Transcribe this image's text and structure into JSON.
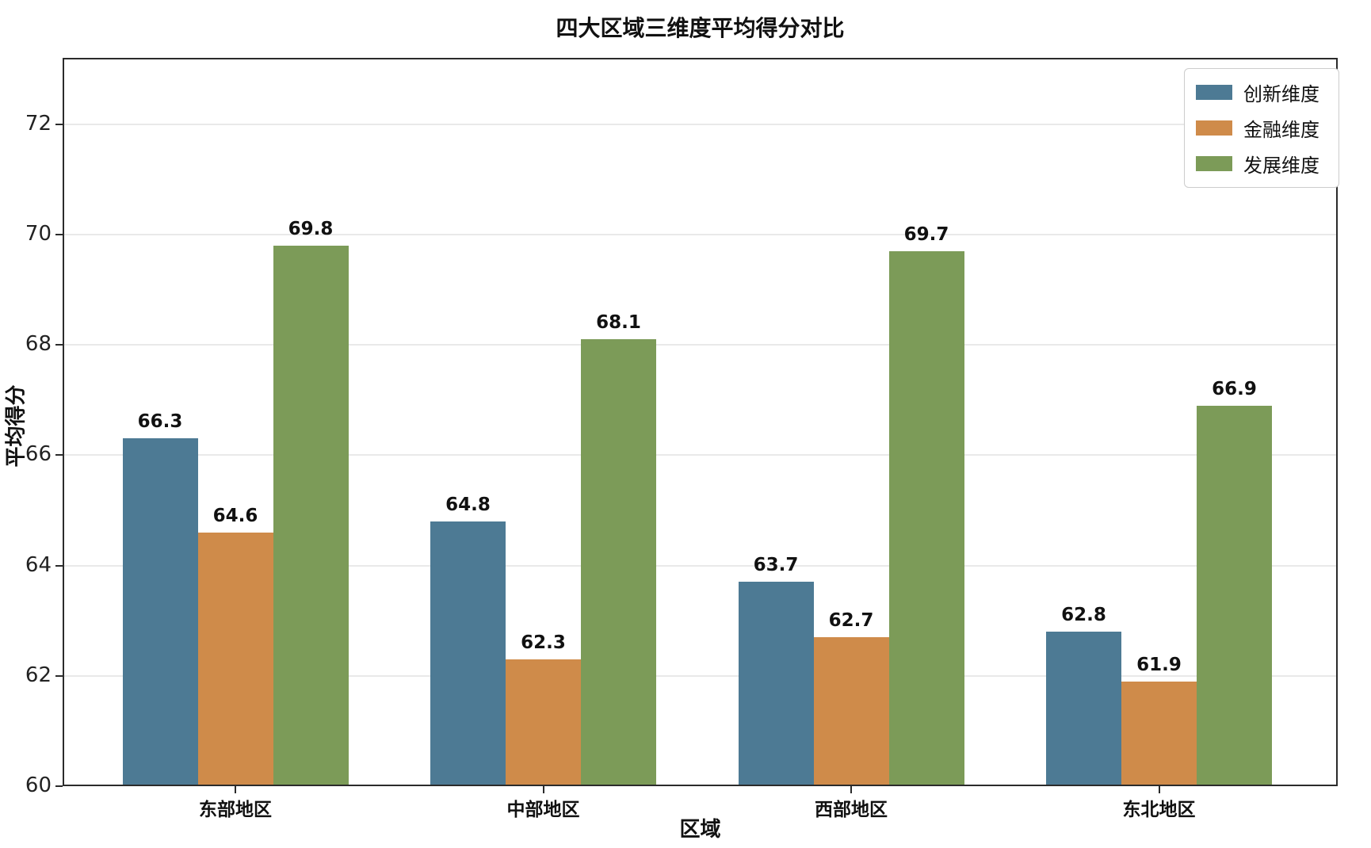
{
  "chart_data": {
    "type": "bar",
    "title": "四大区域三维度平均得分对比",
    "xlabel": "区域",
    "ylabel": "平均得分",
    "categories": [
      "东部地区",
      "中部地区",
      "西部地区",
      "东北地区"
    ],
    "series": [
      {
        "name": "创新维度",
        "color": "#4d7a94",
        "values": [
          66.3,
          64.8,
          63.7,
          62.8
        ]
      },
      {
        "name": "金融维度",
        "color": "#cf8b4a",
        "values": [
          64.6,
          62.3,
          62.7,
          61.9
        ]
      },
      {
        "name": "发展维度",
        "color": "#7c9b58",
        "values": [
          69.8,
          68.1,
          69.7,
          66.9
        ]
      }
    ],
    "ylim": [
      60,
      73.2
    ],
    "yticks": [
      60,
      62,
      64,
      66,
      68,
      70,
      72
    ],
    "grid": true,
    "value_labels": true,
    "value_label_format": "one-decimal",
    "legend_position": "upper right",
    "colors": {
      "background": "#ffffff",
      "grid": "#e9e9e9",
      "spine": "#2b2b2b",
      "text": "#111111",
      "legend_border": "#cccccc"
    }
  }
}
